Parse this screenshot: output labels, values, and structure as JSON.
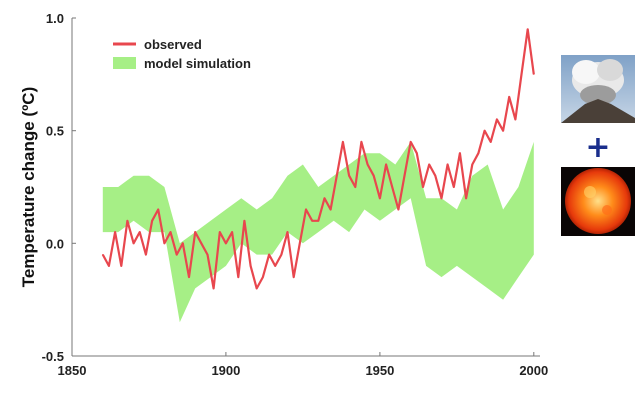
{
  "chart_data": {
    "type": "line",
    "title": "",
    "xlabel": "",
    "ylabel": "Temperature change (ºC)",
    "xlim": [
      1850,
      2002
    ],
    "ylim": [
      -0.5,
      1.0
    ],
    "x_ticks": [
      "1850",
      "1900",
      "1950",
      "2000"
    ],
    "y_ticks": [
      "-0.5",
      "0.0",
      "0.5",
      "1.0"
    ],
    "legend_position": "top-left",
    "grid": false,
    "series": [
      {
        "name": "observed",
        "kind": "line",
        "color": "#e8474e",
        "x": [
          1860,
          1862,
          1864,
          1866,
          1868,
          1870,
          1872,
          1874,
          1876,
          1878,
          1880,
          1882,
          1884,
          1886,
          1888,
          1890,
          1892,
          1894,
          1896,
          1898,
          1900,
          1902,
          1904,
          1906,
          1908,
          1910,
          1912,
          1914,
          1916,
          1918,
          1920,
          1922,
          1924,
          1926,
          1928,
          1930,
          1932,
          1934,
          1936,
          1938,
          1940,
          1942,
          1944,
          1946,
          1948,
          1950,
          1952,
          1954,
          1956,
          1958,
          1960,
          1962,
          1964,
          1966,
          1968,
          1970,
          1972,
          1974,
          1976,
          1978,
          1980,
          1982,
          1984,
          1986,
          1988,
          1990,
          1992,
          1994,
          1996,
          1998,
          2000
        ],
        "values": [
          -0.05,
          -0.1,
          0.05,
          -0.1,
          0.1,
          0.0,
          0.05,
          -0.05,
          0.1,
          0.15,
          0.0,
          0.05,
          -0.05,
          0.0,
          -0.15,
          0.05,
          0.0,
          -0.05,
          -0.2,
          0.05,
          0.0,
          0.05,
          -0.15,
          0.1,
          -0.1,
          -0.2,
          -0.15,
          -0.05,
          -0.1,
          -0.05,
          0.05,
          -0.15,
          0.0,
          0.15,
          0.1,
          0.1,
          0.2,
          0.15,
          0.3,
          0.45,
          0.3,
          0.25,
          0.45,
          0.35,
          0.3,
          0.2,
          0.35,
          0.25,
          0.15,
          0.3,
          0.45,
          0.4,
          0.25,
          0.35,
          0.3,
          0.2,
          0.35,
          0.25,
          0.4,
          0.2,
          0.35,
          0.4,
          0.5,
          0.45,
          0.55,
          0.5,
          0.65,
          0.55,
          0.75,
          0.95,
          0.75
        ]
      },
      {
        "name": "model simulation",
        "kind": "band",
        "color": "#a6ef86",
        "x": [
          1860,
          1865,
          1870,
          1875,
          1880,
          1885,
          1890,
          1895,
          1900,
          1905,
          1910,
          1915,
          1920,
          1925,
          1930,
          1935,
          1940,
          1945,
          1950,
          1955,
          1960,
          1965,
          1970,
          1975,
          1980,
          1985,
          1990,
          1995,
          2000
        ],
        "lower": [
          0.05,
          0.05,
          0.1,
          0.05,
          0.05,
          -0.35,
          -0.2,
          -0.15,
          -0.1,
          0.0,
          -0.05,
          -0.05,
          0.05,
          0.0,
          0.05,
          0.1,
          0.05,
          0.15,
          0.1,
          0.15,
          0.2,
          -0.1,
          -0.15,
          -0.1,
          -0.15,
          -0.2,
          -0.25,
          -0.15,
          -0.05
        ],
        "upper": [
          0.25,
          0.25,
          0.3,
          0.3,
          0.25,
          0.0,
          0.05,
          0.1,
          0.15,
          0.2,
          0.15,
          0.2,
          0.3,
          0.35,
          0.25,
          0.3,
          0.35,
          0.4,
          0.4,
          0.35,
          0.45,
          0.2,
          0.2,
          0.15,
          0.3,
          0.35,
          0.15,
          0.25,
          0.45
        ]
      }
    ],
    "legend": [
      {
        "label": "observed",
        "color": "#e8474e"
      },
      {
        "label": "model simulation",
        "color": "#a6ef86"
      }
    ]
  },
  "side_panel": {
    "images": [
      {
        "icon": "volcano-eruption-photo"
      },
      {
        "icon": "sun-photo"
      }
    ],
    "plus_glyph": "+",
    "plus_color": "#1a2e8c"
  }
}
